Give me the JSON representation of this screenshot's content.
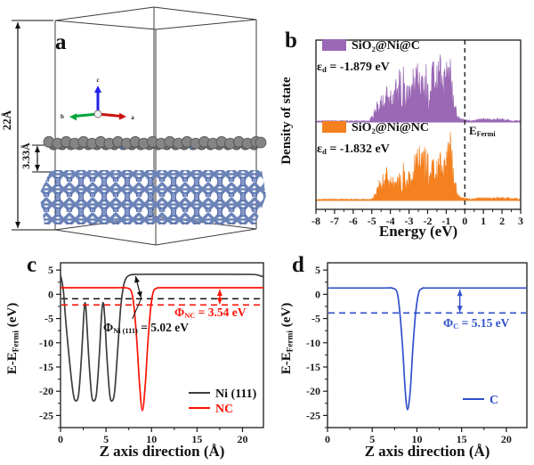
{
  "figure": {
    "background": "#ffffff"
  },
  "colors": {
    "purple": "#9a68b4",
    "orange": "#f48020",
    "red": "#fb1205",
    "blue": "#3050cb",
    "black_curve": "#3d3d3d",
    "axis": "#1a1a1a",
    "ni_stick": "#6c83b8",
    "ni_node_fill": "#8597c9",
    "ni_node_stroke": "#3d5a9b",
    "carbon_atom": "#858585",
    "carbon_atom_stroke": "#4f4f4f",
    "carbon_back": "#6f6f6f",
    "n_atom": "#5d73b0",
    "tripod_a": "#cc1111",
    "tripod_b": "#00a33a",
    "tripod_c": "#2222ee"
  },
  "panels": {
    "a": {
      "label": "a",
      "dim_height": "22Å",
      "dim_gap": "3.33Å",
      "axes": {
        "a": "a",
        "b": "b",
        "c": "c"
      }
    },
    "b": {
      "label": "b",
      "ylabel": "Density of state",
      "xlabel": "Energy (eV)",
      "xticks": [
        -8,
        -7,
        -6,
        -5,
        -4,
        -3,
        -2,
        -1,
        0,
        1,
        2,
        3
      ],
      "efermi_main": "E",
      "efermi_sub": "Fermi",
      "series": [
        {
          "name": "SiO₂@Ni@C",
          "eps_sym": "ε",
          "eps_sub": "d",
          "eps_val": " = -1.879 eV",
          "color": "#9a68b4"
        },
        {
          "name": "SiO₂@Ni@NC",
          "eps_sym": "ε",
          "eps_sub": "d",
          "eps_val": " = -1.832 eV",
          "color": "#f48020"
        }
      ]
    },
    "c": {
      "label": "c",
      "ylabel_main": "E-E",
      "ylabel_sub": "Fermi",
      "ylabel_unit": " (eV)",
      "xlabel": "Z axis direction (Å)",
      "yticks": [
        5,
        0,
        -5,
        -10,
        -15,
        -20,
        -25
      ],
      "xticks": [
        0,
        5,
        10,
        15,
        20
      ],
      "legend": [
        {
          "label": "Ni (111)",
          "color": "#3d3d3d"
        },
        {
          "label": "NC",
          "color": "#fb1205"
        }
      ],
      "ann_nc": {
        "sym": "Φ",
        "sub": "NC",
        "val": " = 3.54 eV",
        "color": "#fb1205"
      },
      "ann_ni": {
        "sym": "Φ",
        "sub": "Ni (111)",
        "val": " = 5.02 eV",
        "color": "#111111"
      }
    },
    "d": {
      "label": "d",
      "ylabel_main": "E-E",
      "ylabel_sub": "Fermi",
      "ylabel_unit": " (eV)",
      "xlabel": "Z axis direction (Å)",
      "yticks": [
        5,
        0,
        -5,
        -10,
        -15,
        -20,
        -25
      ],
      "xticks": [
        0,
        5,
        10,
        15,
        20
      ],
      "legend": [
        {
          "label": "C",
          "color": "#3050cb"
        }
      ],
      "ann_c": {
        "sym": "Φ",
        "sub": "C",
        "val": " = 5.15 eV",
        "color": "#3050cb"
      }
    }
  },
  "chart_data": [
    {
      "panel": "b",
      "type": "area",
      "xlabel": "Energy (eV)",
      "ylabel": "Density of state",
      "xlim": [
        -8,
        3
      ],
      "fermi_line_x": 0,
      "legend_position": "top-left-of-each-subpanel",
      "series": [
        {
          "name": "SiO₂@Ni@C",
          "color": "#9a68b4",
          "d_band_center_eV": -1.879,
          "spikes": [
            [
              -5.1,
              0.05
            ],
            [
              -4.95,
              0.12
            ],
            [
              -4.8,
              0.22
            ],
            [
              -4.7,
              0.3
            ],
            [
              -4.6,
              0.18
            ],
            [
              -4.5,
              0.35
            ],
            [
              -4.4,
              0.42
            ],
            [
              -4.3,
              0.25
            ],
            [
              -4.2,
              0.5
            ],
            [
              -4.1,
              0.35
            ],
            [
              -4.0,
              0.55
            ],
            [
              -3.9,
              0.3
            ],
            [
              -3.8,
              0.45
            ],
            [
              -3.7,
              0.6
            ],
            [
              -3.6,
              0.4
            ],
            [
              -3.5,
              0.95
            ],
            [
              -3.4,
              0.5
            ],
            [
              -3.3,
              0.75
            ],
            [
              -3.2,
              0.45
            ],
            [
              -3.1,
              0.6
            ],
            [
              -3.0,
              0.5
            ],
            [
              -2.9,
              0.65
            ],
            [
              -2.8,
              0.8
            ],
            [
              -2.7,
              0.6
            ],
            [
              -2.6,
              0.9
            ],
            [
              -2.5,
              0.7
            ],
            [
              -2.4,
              0.65
            ],
            [
              -2.3,
              0.75
            ],
            [
              -2.2,
              0.55
            ],
            [
              -2.1,
              0.8
            ],
            [
              -2.0,
              0.6
            ],
            [
              -1.9,
              0.5
            ],
            [
              -1.8,
              0.7
            ],
            [
              -1.7,
              0.9
            ],
            [
              -1.6,
              0.75
            ],
            [
              -1.5,
              1.0
            ],
            [
              -1.4,
              0.8
            ],
            [
              -1.3,
              0.9
            ],
            [
              -1.2,
              0.6
            ],
            [
              -1.1,
              0.7
            ],
            [
              -1.0,
              0.85
            ],
            [
              -0.9,
              0.75
            ],
            [
              -0.8,
              0.9
            ],
            [
              -0.7,
              0.6
            ],
            [
              -0.6,
              0.4
            ],
            [
              -0.5,
              0.25
            ],
            [
              -0.4,
              0.12
            ],
            [
              -0.3,
              0.07
            ],
            [
              -0.2,
              0.05
            ],
            [
              -0.1,
              0.04
            ],
            [
              0.1,
              0.03
            ],
            [
              0.5,
              0.03
            ],
            [
              1.0,
              0.05
            ],
            [
              1.5,
              0.04
            ],
            [
              2.0,
              0.05
            ],
            [
              2.5,
              0.03
            ]
          ]
        },
        {
          "name": "SiO₂@Ni@NC",
          "color": "#f48020",
          "d_band_center_eV": -1.832,
          "spikes": [
            [
              -5.0,
              0.04
            ],
            [
              -4.85,
              0.1
            ],
            [
              -4.7,
              0.2
            ],
            [
              -4.6,
              0.3
            ],
            [
              -4.5,
              0.22
            ],
            [
              -4.4,
              0.45
            ],
            [
              -4.3,
              0.3
            ],
            [
              -4.2,
              0.5
            ],
            [
              -4.1,
              0.3
            ],
            [
              -4.0,
              0.42
            ],
            [
              -3.9,
              0.35
            ],
            [
              -3.8,
              0.3
            ],
            [
              -3.7,
              0.28
            ],
            [
              -3.6,
              0.35
            ],
            [
              -3.5,
              0.5
            ],
            [
              -3.4,
              0.3
            ],
            [
              -3.3,
              0.55
            ],
            [
              -3.2,
              0.4
            ],
            [
              -3.1,
              0.35
            ],
            [
              -3.0,
              0.45
            ],
            [
              -2.9,
              0.5
            ],
            [
              -2.8,
              0.4
            ],
            [
              -2.7,
              0.65
            ],
            [
              -2.6,
              0.8
            ],
            [
              -2.5,
              0.7
            ],
            [
              -2.4,
              0.85
            ],
            [
              -2.3,
              0.75
            ],
            [
              -2.2,
              0.9
            ],
            [
              -2.1,
              0.7
            ],
            [
              -2.0,
              0.8
            ],
            [
              -1.9,
              0.6
            ],
            [
              -1.8,
              0.55
            ],
            [
              -1.7,
              0.65
            ],
            [
              -1.6,
              0.5
            ],
            [
              -1.5,
              0.75
            ],
            [
              -1.4,
              0.6
            ],
            [
              -1.3,
              0.7
            ],
            [
              -1.2,
              0.5
            ],
            [
              -1.1,
              0.6
            ],
            [
              -1.0,
              0.7
            ],
            [
              -0.9,
              0.85
            ],
            [
              -0.8,
              1.0
            ],
            [
              -0.75,
              0.95
            ],
            [
              -0.7,
              0.8
            ],
            [
              -0.6,
              0.5
            ],
            [
              -0.5,
              0.3
            ],
            [
              -0.4,
              0.15
            ],
            [
              -0.3,
              0.08
            ],
            [
              -0.2,
              0.05
            ],
            [
              -0.1,
              0.04
            ],
            [
              0.2,
              0.03
            ],
            [
              0.8,
              0.04
            ],
            [
              1.5,
              0.04
            ],
            [
              2.2,
              0.05
            ],
            [
              2.8,
              0.03
            ]
          ]
        }
      ]
    },
    {
      "panel": "c",
      "type": "line",
      "xlabel": "Z axis direction (Å)",
      "ylabel": "E-E_Fermi (eV)",
      "xlim": [
        0,
        22.3
      ],
      "ylim": [
        -27.5,
        6.5
      ],
      "legend_position": "bottom-right",
      "series": [
        {
          "name": "Ni (111)",
          "color": "#3d3d3d",
          "fermi_level_eV": -0.92,
          "vacuum_level_eV": 4.1,
          "work_function_eV": 5.02,
          "points": [
            [
              0,
              4.0
            ],
            [
              0.3,
              1.0
            ],
            [
              0.6,
              -6
            ],
            [
              1.0,
              -14
            ],
            [
              1.4,
              -20.5
            ],
            [
              1.7,
              -22
            ],
            [
              2.0,
              -20.5
            ],
            [
              2.3,
              -13
            ],
            [
              2.55,
              -4.5
            ],
            [
              2.7,
              -1.7
            ],
            [
              2.85,
              -4.5
            ],
            [
              3.1,
              -13
            ],
            [
              3.4,
              -20.5
            ],
            [
              3.65,
              -22
            ],
            [
              3.95,
              -20.5
            ],
            [
              4.25,
              -13
            ],
            [
              4.5,
              -4.5
            ],
            [
              4.68,
              -1.7
            ],
            [
              4.85,
              -4.5
            ],
            [
              5.1,
              -13
            ],
            [
              5.4,
              -20.5
            ],
            [
              5.65,
              -22
            ],
            [
              5.95,
              -20
            ],
            [
              6.3,
              -11
            ],
            [
              6.6,
              -3
            ],
            [
              6.9,
              1.5
            ],
            [
              7.2,
              3.3
            ],
            [
              7.6,
              3.95
            ],
            [
              8.2,
              4.1
            ],
            [
              10,
              4.12
            ],
            [
              14,
              4.12
            ],
            [
              18,
              4.12
            ],
            [
              21,
              4.1
            ],
            [
              21.6,
              4.0
            ],
            [
              22.3,
              3.6
            ]
          ]
        },
        {
          "name": "NC",
          "color": "#fb1205",
          "fermi_level_eV": -2.2,
          "vacuum_level_eV": 1.34,
          "work_function_eV": 3.54,
          "points": [
            [
              0,
              1.35
            ],
            [
              4,
              1.35
            ],
            [
              6,
              1.35
            ],
            [
              7.3,
              1.3
            ],
            [
              7.8,
              0.5
            ],
            [
              8.1,
              -3
            ],
            [
              8.4,
              -10
            ],
            [
              8.7,
              -19
            ],
            [
              9.0,
              -24
            ],
            [
              9.3,
              -19
            ],
            [
              9.6,
              -10
            ],
            [
              9.9,
              -3
            ],
            [
              10.2,
              0.5
            ],
            [
              10.6,
              1.25
            ],
            [
              11.2,
              1.35
            ],
            [
              16,
              1.35
            ],
            [
              22.3,
              1.35
            ]
          ]
        }
      ]
    },
    {
      "panel": "d",
      "type": "line",
      "xlabel": "Z axis direction (Å)",
      "ylabel": "E-E_Fermi (eV)",
      "xlim": [
        0,
        22.3
      ],
      "ylim": [
        -27.5,
        6.5
      ],
      "legend_position": "bottom-right",
      "series": [
        {
          "name": "C",
          "color": "#3050cb",
          "fermi_level_eV": -3.85,
          "vacuum_level_eV": 1.3,
          "work_function_eV": 5.15,
          "points": [
            [
              0,
              1.3
            ],
            [
              4,
              1.3
            ],
            [
              6.5,
              1.3
            ],
            [
              7.3,
              1.25
            ],
            [
              7.8,
              0.3
            ],
            [
              8.1,
              -4
            ],
            [
              8.4,
              -11
            ],
            [
              8.7,
              -20
            ],
            [
              8.95,
              -23.8
            ],
            [
              9.25,
              -20
            ],
            [
              9.55,
              -11
            ],
            [
              9.85,
              -4
            ],
            [
              10.2,
              0.3
            ],
            [
              10.6,
              1.2
            ],
            [
              11.2,
              1.3
            ],
            [
              16,
              1.3
            ],
            [
              22.3,
              1.3
            ]
          ]
        }
      ]
    }
  ]
}
